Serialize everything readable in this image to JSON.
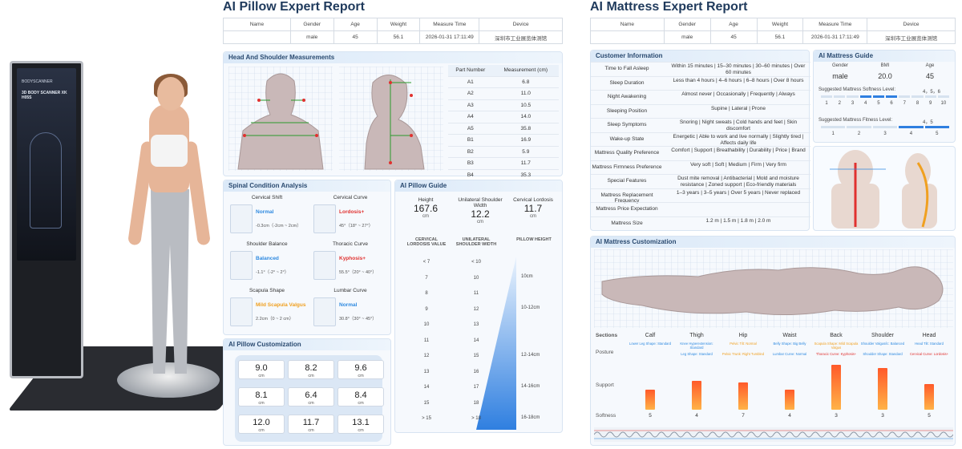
{
  "kiosk": {
    "brand": "BODYSCANNER",
    "title": "3D BODY SCANNER XK H05S"
  },
  "pillow": {
    "title": "AI Pillow Expert Report",
    "header": {
      "cols": [
        "Name",
        "Gender",
        "Age",
        "Weight",
        "Measure Time",
        "Device"
      ],
      "values": [
        "",
        "male",
        "45",
        "56.1",
        "2026-01-31 17:11:49",
        "深圳市工业展览体测馆"
      ]
    },
    "measurements": {
      "title": "Head And Shoulder Measurements",
      "col_part": "Part Number",
      "col_meas": "Measurement (cm)",
      "rows": [
        {
          "part": "A1",
          "value": "6.8"
        },
        {
          "part": "A2",
          "value": "11.0"
        },
        {
          "part": "A3",
          "value": "10.5"
        },
        {
          "part": "A4",
          "value": "14.0"
        },
        {
          "part": "A5",
          "value": "35.8"
        },
        {
          "part": "B1",
          "value": "16.9"
        },
        {
          "part": "B2",
          "value": "5.9"
        },
        {
          "part": "B3",
          "value": "11.7"
        },
        {
          "part": "B4",
          "value": "35.3"
        }
      ]
    },
    "spinal": {
      "title": "Spinal Condition Analysis",
      "items": [
        {
          "title": "Cervical Shift",
          "status": "Normal",
          "range": "-0.3cm（-2cm ~ 2cm）",
          "color": "#2f8ae0"
        },
        {
          "title": "Cervical Curve",
          "status": "Lordosis+",
          "range": "45°（18° ~ 27°）",
          "color": "#e0312f"
        },
        {
          "title": "Shoulder Balance",
          "status": "Balanced",
          "range": "-1.1°（-2° ~ 2°）",
          "color": "#2f8ae0"
        },
        {
          "title": "Thoracic Curve",
          "status": "Kyphosis+",
          "range": "55.5°（20° ~ 40°）",
          "color": "#e0312f"
        },
        {
          "title": "Scapula Shape",
          "status": "Mild Scapula Valgus",
          "range": "2.2cm（0 ~ 2 cm）",
          "color": "#f0a020"
        },
        {
          "title": "Lumbar Curve",
          "status": "Normal",
          "range": "30.8°（30° ~ 45°）",
          "color": "#2f8ae0"
        }
      ]
    },
    "guide": {
      "title": "AI Pillow Guide",
      "height_label": "Height",
      "height_value": "167.6",
      "height_unit": "cm",
      "shoulder_label": "Unilateral Shoulder Width",
      "shoulder_value": "12.2",
      "shoulder_unit": "cm",
      "lordosis_label": "Cervical Lordosis",
      "lordosis_value": "11.7",
      "lordosis_unit": "cm",
      "table_col1": "CERVICAL LORDOSIS VALUE",
      "table_col2": "UNILATERAL SHOULDER WIDTH",
      "table_col3": "PILLOW HEIGHT",
      "table_rows": [
        {
          "c1": "< 7",
          "c2": "< 10"
        },
        {
          "c1": "7",
          "c2": "10"
        },
        {
          "c1": "8",
          "c2": "11"
        },
        {
          "c1": "9",
          "c2": "12"
        },
        {
          "c1": "10",
          "c2": "13"
        },
        {
          "c1": "11",
          "c2": "14"
        },
        {
          "c1": "12",
          "c2": "15"
        },
        {
          "c1": "13",
          "c2": "16"
        },
        {
          "c1": "14",
          "c2": "17"
        },
        {
          "c1": "15",
          "c2": "18"
        },
        {
          "c1": "> 15",
          "c2": "> 18"
        }
      ],
      "heights": [
        "10cm",
        "10-12cm",
        "12-14cm",
        "14-16cm",
        "16-18cm"
      ]
    },
    "customization": {
      "title": "AI Pillow Customization",
      "unit": "cm",
      "cells": [
        "9.0",
        "8.2",
        "9.6",
        "8.1",
        "6.4",
        "8.4",
        "12.0",
        "11.7",
        "13.1"
      ]
    }
  },
  "mattress": {
    "title": "AI Mattress Expert Report",
    "header": {
      "cols": [
        "Name",
        "Gender",
        "Age",
        "Weight",
        "Measure Time",
        "Device"
      ],
      "values": [
        "",
        "male",
        "45",
        "56.1",
        "2026-01-31 17:11:49",
        "深圳市工业展览体测馆"
      ]
    },
    "customer": {
      "title": "Customer Information",
      "rows": [
        {
          "label": "Time to Fall Asleep",
          "value": "Within 15 minutes | 15–30 minutes | 30–60 minutes | Over 60 minutes"
        },
        {
          "label": "Sleep Duration",
          "value": "Less than 4 hours | 4–6 hours | 6–8 hours | Over 8 hours"
        },
        {
          "label": "Night Awakening",
          "value": "Almost never | Occasionally | Frequently | Always"
        },
        {
          "label": "Sleeping Position",
          "value": "Supine | Lateral | Prone"
        },
        {
          "label": "Sleep Symptoms",
          "value": "Snoring | Night sweats | Cold hands and feet | Skin discomfort"
        },
        {
          "label": "Wake-up State",
          "value": "Energetic | Able to work and live normally | Slightly tired | Affects daily life"
        },
        {
          "label": "Mattress Quality Preference",
          "value": "Comfort | Support | Breathability | Durability | Price | Brand"
        },
        {
          "label": "Mattress Firmness Preference",
          "value": "Very soft | Soft | Medium | Firm | Very firm"
        },
        {
          "label": "Special Features",
          "value": "Dust mite removal | Antibacterial | Mold and moisture resistance | Zoned support | Eco-friendly materials"
        },
        {
          "label": "Mattress Replacement Frequency",
          "value": "1–3 years | 3–5 years | Over 5 years | Never replaced"
        },
        {
          "label": "Mattress Price Expectation",
          "value": ""
        },
        {
          "label": "Mattress Size",
          "value": "1.2 m | 1.5 m | 1.8 m | 2.0 m"
        }
      ]
    },
    "guide": {
      "title": "AI Mattress Guide",
      "gender_label": "Gender",
      "gender_value": "male",
      "bmi_label": "BMI",
      "bmi_value": "20.0",
      "age_label": "Age",
      "age_value": "45",
      "softness_label": "Suggested Mattress Softness Level:",
      "softness_value": "4，5，6",
      "softness_scale": [
        "1",
        "2",
        "3",
        "4",
        "5",
        "6",
        "7",
        "8",
        "9",
        "10"
      ],
      "softness_selected": [
        4,
        5,
        6
      ],
      "fitness_label": "Suggested Mattress Fitness Level:",
      "fitness_value": "4，5",
      "fitness_scale": [
        "1",
        "2",
        "3",
        "4",
        "5"
      ],
      "fitness_selected": [
        4,
        5
      ]
    },
    "customization": {
      "title": "AI Mattress Customization",
      "sections_label": "Sections",
      "posture_label": "Posture",
      "support_label": "Support",
      "softness_label": "Softness",
      "sections": [
        {
          "name": "Calf",
          "posture1": "Lower Leg Shape: Standard",
          "posture2": "",
          "softness": "5",
          "support": 0.45
        },
        {
          "name": "Thigh",
          "posture1": "Knee Hyperextension: Standard",
          "posture2": "Leg Shape: Standard",
          "softness": "4",
          "support": 0.65
        },
        {
          "name": "Hip",
          "posture1": "Pelvic Tilt: Normal",
          "posture2": "Pelvic Trunk: Right Tumbled",
          "softness": "7",
          "support": 0.6
        },
        {
          "name": "Waist",
          "posture1": "Belly Shape: Big Belly",
          "posture2": "Lumbar Curve: Normal",
          "softness": "4",
          "support": 0.45
        },
        {
          "name": "Back",
          "posture1": "Scapula Shape: Mild Scapula Valgus",
          "posture2": "Thoracic Curve: Kyphosis+",
          "softness": "3",
          "support": 1.0
        },
        {
          "name": "Shoulder",
          "posture1": "Shoulder Valgus/ic: Balanced",
          "posture2": "Shoulder Shape: Standard",
          "softness": "3",
          "support": 0.92
        },
        {
          "name": "Head",
          "posture1": "Head Tilt: Standard",
          "posture2": "Cervical Curve: Lordosis+",
          "softness": "5",
          "support": 0.58
        }
      ]
    }
  },
  "colors": {
    "accent": "#2f8ae0",
    "warn": "#e0312f",
    "amber": "#f0a020",
    "title": "#1f3a5c"
  }
}
